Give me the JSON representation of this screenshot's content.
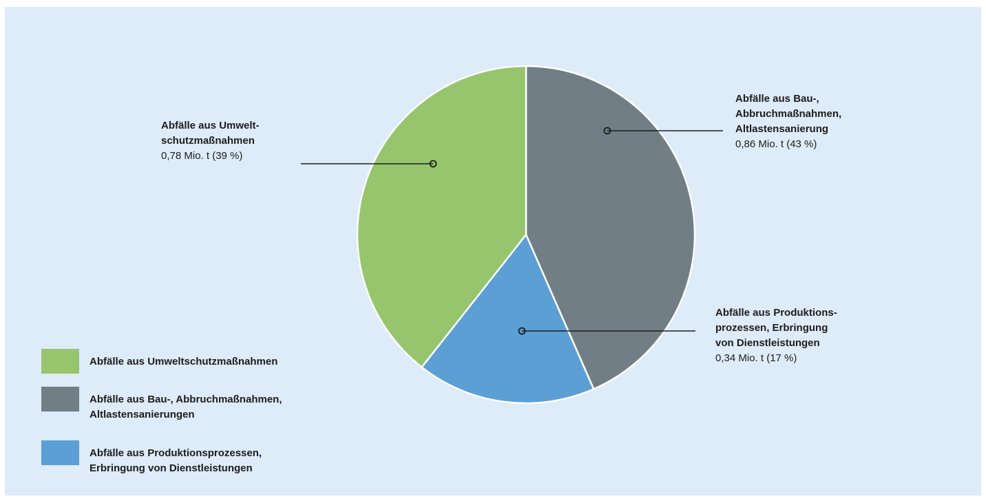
{
  "chart_data": {
    "type": "pie",
    "slices": [
      {
        "label": "Abfälle aus Bau-,\nAbbruchmaßnahmen,\nAltlastensanierung",
        "value_text": "0,86 Mio. t (43 %)",
        "value": 0.86,
        "percent": 43,
        "color": "#717e85"
      },
      {
        "label": "Abfälle aus Produktions-\nprozessen, Erbringung\nvon Dienstleistungen",
        "value_text": "0,34 Mio. t (17 %)",
        "value": 0.34,
        "percent": 17,
        "color": "#5b9fd5"
      },
      {
        "label": "Abfälle aus Umwelt-\nschutzmaßnahmen",
        "value_text": "0,78 Mio. t (39 %)",
        "value": 0.78,
        "percent": 39,
        "color": "#96c56d"
      }
    ],
    "start_angle_deg": 0,
    "direction": "clockwise",
    "legend": {
      "position": "bottom-left",
      "items": [
        {
          "label": "Abfälle aus Umweltschutzmaßnahmen",
          "color": "#96c56d"
        },
        {
          "label": "Abfälle aus Bau-, Abbruchmaßnahmen,\nAltlastensanierungen",
          "color": "#717e85"
        },
        {
          "label": "Abfälle aus Produktionsprozessen,\nErbringung von Dienstleistungen",
          "color": "#5b9fd5"
        }
      ]
    }
  },
  "colors": {
    "background": "#deebf8",
    "leader": "#1d1d1b",
    "slice_border": "#ffffff"
  }
}
